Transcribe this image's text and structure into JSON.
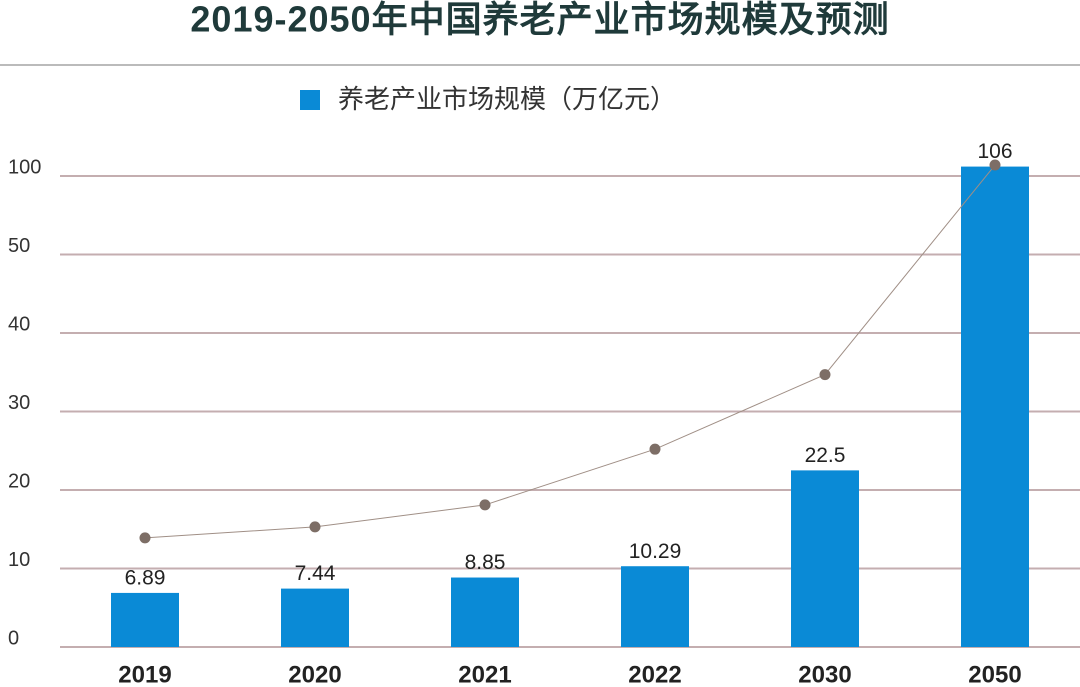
{
  "chart_data": {
    "type": "bar",
    "title": "2019-2050年中国养老产业市场规模及预测",
    "categories": [
      "2019",
      "2020",
      "2021",
      "2022",
      "2030",
      "2050"
    ],
    "series": [
      {
        "name": "养老产业市场规模（万亿元）",
        "color": "#0a8ad6",
        "values": [
          6.89,
          7.44,
          8.85,
          10.29,
          22.5,
          106
        ]
      },
      {
        "type": "line",
        "color": "#7d6e66",
        "values": [
          13.9,
          15.3,
          18.1,
          25.2,
          34.7,
          107
        ]
      }
    ],
    "ylim": [
      0,
      110
    ],
    "yticks": [
      0,
      10,
      20,
      30,
      40,
      50,
      100
    ],
    "grid": true,
    "legend": "top"
  }
}
